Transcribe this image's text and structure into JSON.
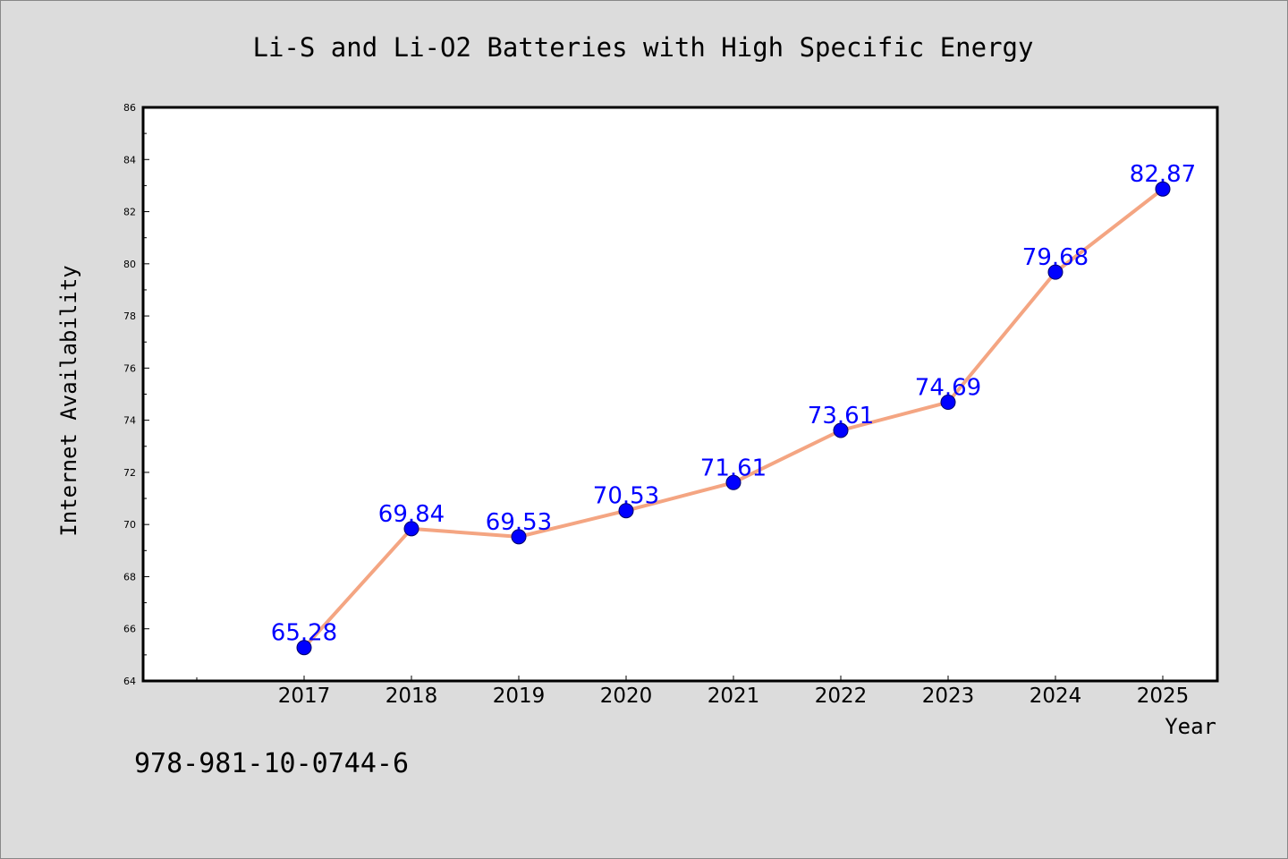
{
  "chart_data": {
    "type": "line",
    "title": "Li-S and Li-O2 Batteries with High Specific Energy",
    "xlabel": "Year",
    "ylabel": "Internet Availability",
    "categories": [
      "2017",
      "2018",
      "2019",
      "2020",
      "2021",
      "2022",
      "2023",
      "2024",
      "2025"
    ],
    "series": [
      {
        "values": [
          65.28,
          69.84,
          69.53,
          70.53,
          71.61,
          73.61,
          74.69,
          79.68,
          82.87
        ]
      }
    ],
    "data_labels": [
      "65.28",
      "69.84",
      "69.53",
      "70.53",
      "71.61",
      "73.61",
      "74.69",
      "79.68",
      "82.87"
    ],
    "ylim": [
      64,
      86
    ],
    "yticks": [
      "64",
      "66",
      "68",
      "70",
      "72",
      "74",
      "76",
      "78",
      "80",
      "82",
      "84",
      "86"
    ],
    "grid": false,
    "colors": {
      "line": "#f4a582",
      "marker": "#0000ff",
      "label": "#0000ff",
      "background": "#dcdcdc",
      "plot_area": "#ffffff"
    }
  },
  "footnote": "978-981-10-0744-6"
}
